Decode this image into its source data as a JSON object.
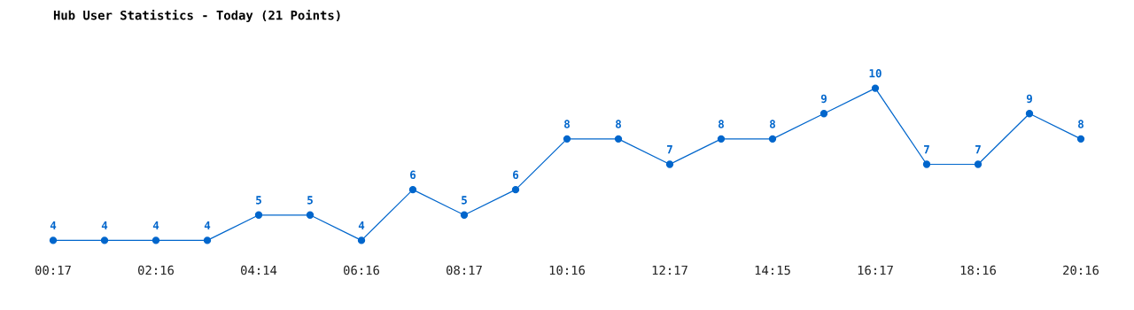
{
  "chart_data": {
    "type": "line",
    "title": "Hub User Statistics - Today (21 Points)",
    "categories": [
      "00:17",
      null,
      "02:16",
      null,
      "04:14",
      null,
      "06:16",
      null,
      "08:17",
      null,
      "10:16",
      null,
      "12:17",
      null,
      "14:15",
      null,
      "16:17",
      null,
      "18:16",
      null,
      "20:16"
    ],
    "series": [
      {
        "color": "#0066cc",
        "values": [
          4,
          4,
          4,
          4,
          5,
          5,
          4,
          6,
          5,
          6,
          8,
          8,
          7,
          8,
          8,
          9,
          10,
          7,
          7,
          9,
          8
        ]
      }
    ],
    "data_labels": true,
    "marker": "circle",
    "line_style": "solid",
    "grid": false,
    "legend": false,
    "tick_labels": "x"
  }
}
